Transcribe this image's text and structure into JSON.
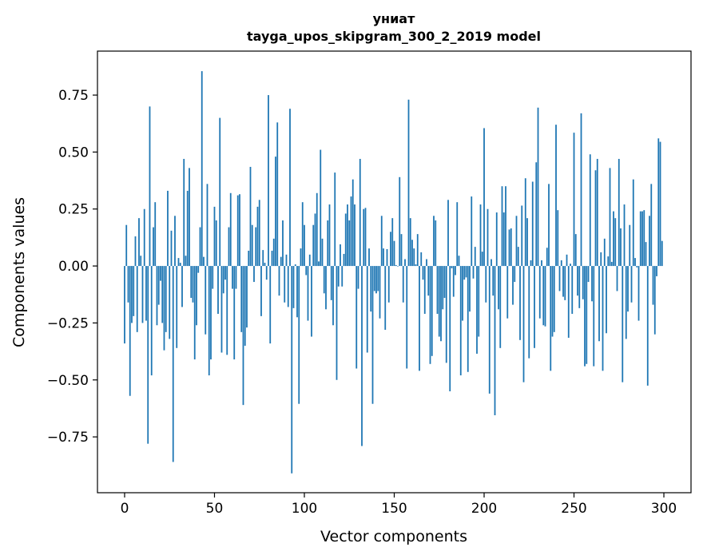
{
  "chart_data": {
    "type": "bar",
    "title": "униат",
    "subtitle": "tayga_upos_skipgram_300_2_2019 model",
    "xlabel": "Vector components",
    "ylabel": "Components values",
    "xlim": [
      -15.1,
      315.1
    ],
    "ylim": [
      -0.995,
      0.943
    ],
    "xticks": [
      0,
      50,
      100,
      150,
      200,
      250,
      300
    ],
    "xtick_labels": [
      "0",
      "50",
      "100",
      "150",
      "200",
      "250",
      "300"
    ],
    "yticks": [
      -0.75,
      -0.5,
      -0.25,
      0,
      0.25,
      0.5,
      0.75
    ],
    "ytick_labels": [
      "−0.75",
      "−0.50",
      "−0.25",
      "0.00",
      "0.25",
      "0.50",
      "0.75"
    ],
    "grid": false,
    "color": "#1f77b4",
    "values": [
      -0.34,
      0.18,
      -0.16,
      -0.57,
      -0.25,
      -0.22,
      0.13,
      -0.29,
      0.21,
      0.045,
      -0.25,
      0.25,
      -0.24,
      -0.78,
      0.7,
      -0.48,
      0.17,
      0.28,
      -0.26,
      -0.17,
      -0.065,
      -0.25,
      -0.37,
      -0.29,
      0.33,
      -0.32,
      0.155,
      -0.86,
      0.22,
      -0.36,
      0.035,
      0.014,
      -0.18,
      0.47,
      0.045,
      0.33,
      0.43,
      -0.14,
      -0.16,
      -0.41,
      -0.26,
      -0.03,
      0.17,
      0.855,
      0.04,
      -0.3,
      0.36,
      -0.48,
      -0.41,
      -0.1,
      0.26,
      0.2,
      -0.21,
      0.65,
      -0.38,
      -0.12,
      -0.06,
      -0.39,
      0.17,
      0.32,
      -0.1,
      -0.41,
      -0.1,
      0.31,
      0.315,
      -0.29,
      -0.61,
      -0.35,
      -0.27,
      0.067,
      0.435,
      0.18,
      -0.07,
      0.17,
      0.26,
      0.29,
      -0.22,
      0.07,
      0.014,
      -0.06,
      0.75,
      -0.34,
      0.067,
      0.12,
      0.48,
      0.63,
      -0.13,
      0.04,
      0.2,
      -0.16,
      0.05,
      -0.18,
      0.69,
      -0.91,
      -0.185,
      0.007,
      -0.225,
      -0.605,
      0.077,
      0.28,
      0.18,
      -0.04,
      -0.24,
      0.05,
      -0.31,
      0.18,
      0.23,
      0.32,
      0.02,
      0.51,
      0.12,
      -0.12,
      -0.19,
      0.2,
      0.27,
      -0.15,
      -0.26,
      0.41,
      -0.5,
      -0.09,
      0.095,
      -0.09,
      0.053,
      0.23,
      0.27,
      0.2,
      0.305,
      0.38,
      0.27,
      -0.45,
      -0.1,
      0.47,
      -0.79,
      0.25,
      0.255,
      -0.38,
      0.077,
      -0.2,
      -0.605,
      -0.11,
      -0.12,
      -0.11,
      -0.23,
      0.22,
      0.077,
      -0.28,
      0.074,
      -0.16,
      0.15,
      0.21,
      0.11,
      0.004,
      -0.002,
      0.39,
      0.14,
      -0.16,
      0.03,
      -0.45,
      0.73,
      0.21,
      0.115,
      0.077,
      0.007,
      0.14,
      -0.46,
      0.06,
      -0.06,
      -0.21,
      0.03,
      -0.13,
      -0.43,
      -0.395,
      0.22,
      0.2,
      -0.21,
      -0.31,
      -0.33,
      -0.19,
      -0.14,
      -0.425,
      0.29,
      -0.55,
      -0.01,
      -0.135,
      -0.04,
      0.28,
      0.045,
      -0.48,
      -0.24,
      -0.06,
      -0.05,
      -0.465,
      -0.2,
      0.305,
      -0.055,
      0.084,
      -0.385,
      -0.31,
      0.27,
      0.063,
      0.605,
      -0.16,
      0.25,
      -0.56,
      0.03,
      -0.13,
      -0.655,
      0.235,
      -0.19,
      -0.36,
      0.35,
      0.235,
      0.35,
      -0.23,
      0.16,
      0.165,
      -0.17,
      -0.07,
      0.22,
      0.084,
      -0.325,
      0.265,
      -0.51,
      0.385,
      0.21,
      -0.405,
      0.025,
      0.37,
      -0.36,
      0.455,
      0.695,
      -0.23,
      0.025,
      -0.26,
      -0.265,
      0.08,
      0.36,
      -0.46,
      -0.31,
      -0.29,
      0.62,
      0.245,
      -0.11,
      0.025,
      -0.135,
      -0.15,
      0.05,
      -0.315,
      0.01,
      -0.21,
      0.585,
      0.14,
      -0.13,
      -0.185,
      0.67,
      -0.146,
      -0.44,
      -0.43,
      -0.07,
      0.49,
      -0.155,
      -0.44,
      0.42,
      0.47,
      -0.33,
      0.06,
      -0.46,
      0.12,
      -0.295,
      0.042,
      0.43,
      0.018,
      0.24,
      0.21,
      -0.11,
      0.47,
      0.165,
      -0.51,
      0.27,
      -0.32,
      -0.2,
      0.18,
      -0.16,
      0.38,
      0.035,
      -0.006,
      -0.24,
      0.24,
      0.24,
      0.245,
      0.105,
      -0.525,
      0.22,
      0.36,
      -0.17,
      -0.3,
      -0.045,
      0.56,
      0.545,
      0.11
    ]
  }
}
